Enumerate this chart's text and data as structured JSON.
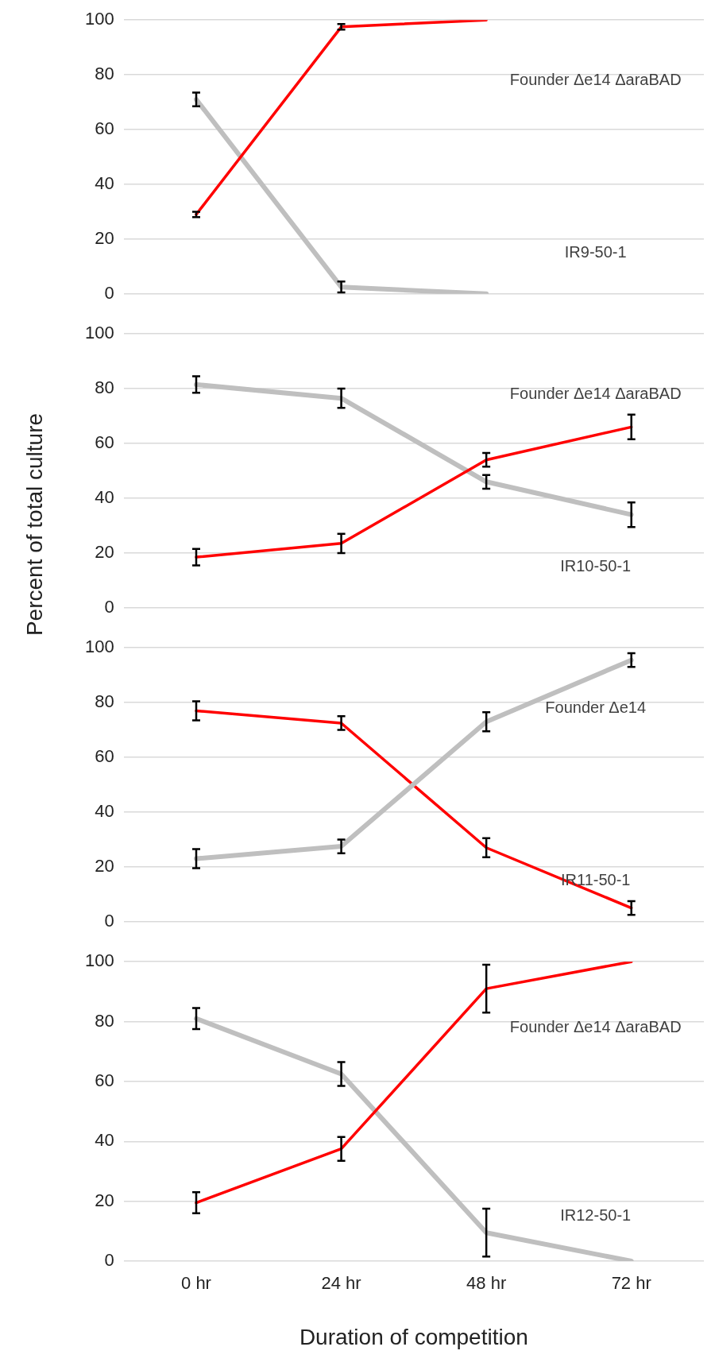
{
  "chart_data": [
    {
      "type": "line",
      "categories": [
        null,
        null,
        null,
        null
      ],
      "ylim": [
        0,
        100
      ],
      "yticks": [
        0,
        20,
        40,
        60,
        80,
        100
      ],
      "grid": "y",
      "legend": false,
      "tick_labels": "y",
      "series": [
        {
          "name": "Founder Δe14 ΔaraBAD",
          "color": "#ff0000",
          "values": [
            29,
            97.5,
            100,
            null
          ],
          "errors": [
            1,
            1,
            null,
            null
          ]
        },
        {
          "name": "IR9-50-1",
          "color": "#bfbfbf",
          "values": [
            71,
            2.5,
            0,
            null
          ],
          "errors": [
            2.5,
            2,
            null,
            null
          ]
        }
      ]
    },
    {
      "type": "line",
      "ylabel": "Percent of total culture",
      "categories": [
        null,
        null,
        null,
        null
      ],
      "ylim": [
        0,
        100
      ],
      "yticks": [
        0,
        20,
        40,
        60,
        80,
        100
      ],
      "grid": "y",
      "legend": false,
      "tick_labels": "y",
      "series": [
        {
          "name": "Founder Δe14 ΔaraBAD",
          "color": "#ff0000",
          "values": [
            18.5,
            23.5,
            54,
            66
          ],
          "errors": [
            3,
            3.5,
            2.5,
            4.5
          ]
        },
        {
          "name": "IR10-50-1",
          "color": "#bfbfbf",
          "values": [
            81.5,
            76.5,
            46,
            34
          ],
          "errors": [
            3,
            3.5,
            2.5,
            4.5
          ]
        }
      ]
    },
    {
      "type": "line",
      "categories": [
        null,
        null,
        null,
        null
      ],
      "ylim": [
        0,
        100
      ],
      "yticks": [
        0,
        20,
        40,
        60,
        80,
        100
      ],
      "grid": "y",
      "legend": false,
      "tick_labels": "y",
      "series": [
        {
          "name": "Founder Δe14",
          "color": "#bfbfbf",
          "values": [
            23,
            27.5,
            73,
            95.5
          ],
          "errors": [
            3.5,
            2.5,
            3.5,
            2.5
          ]
        },
        {
          "name": "IR11-50-1",
          "color": "#ff0000",
          "values": [
            77,
            72.5,
            27,
            5
          ],
          "errors": [
            3.5,
            2.5,
            3.5,
            2.5
          ]
        }
      ]
    },
    {
      "type": "line",
      "xlabel": "Duration of competition",
      "categories": [
        "0 hr",
        "24 hr",
        "48 hr",
        "72 hr"
      ],
      "ylim": [
        0,
        100
      ],
      "yticks": [
        0,
        20,
        40,
        60,
        80,
        100
      ],
      "grid": "y",
      "legend": false,
      "series": [
        {
          "name": "Founder Δe14 ΔaraBAD",
          "color": "#ff0000",
          "values": [
            19.5,
            37.5,
            91,
            100
          ],
          "errors": [
            3.5,
            4,
            8,
            null
          ]
        },
        {
          "name": "IR12-50-1",
          "color": "#bfbfbf",
          "values": [
            81,
            62.5,
            9.5,
            0
          ],
          "errors": [
            3.5,
            4,
            8,
            null
          ]
        }
      ]
    }
  ]
}
